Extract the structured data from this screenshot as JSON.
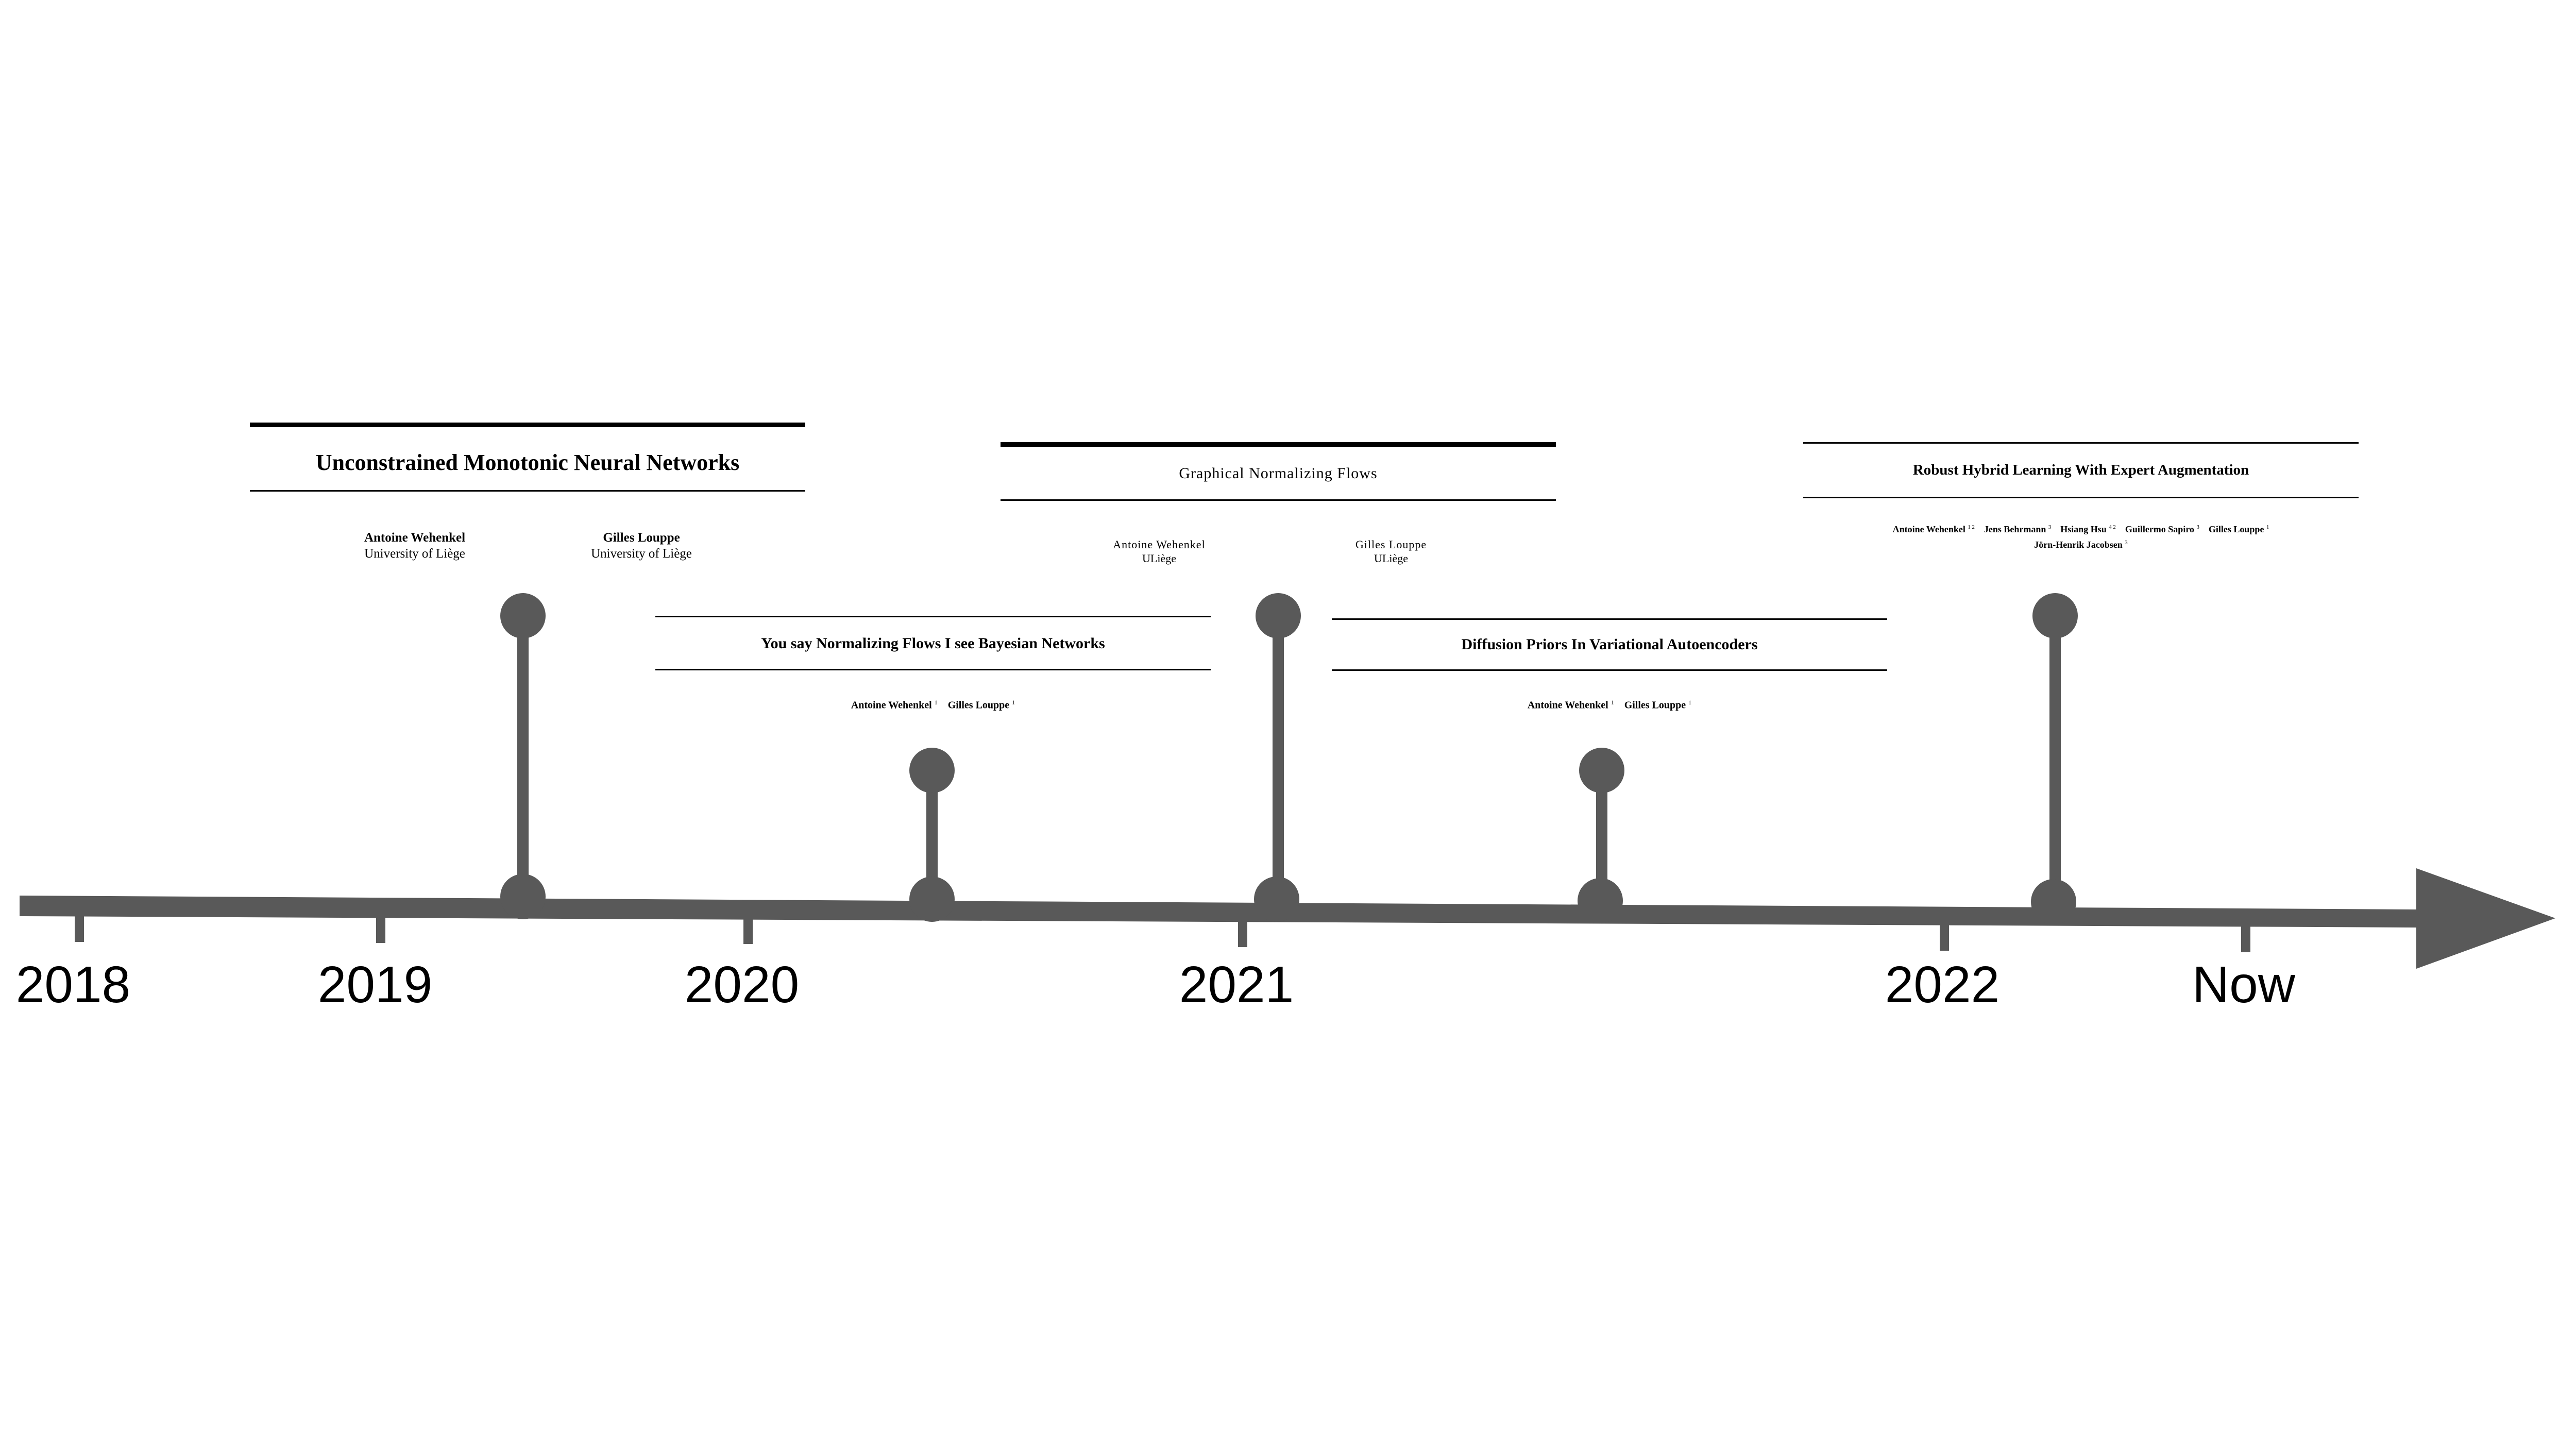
{
  "timeline": {
    "years": [
      "2018",
      "2019",
      "2020",
      "2021",
      "2022",
      "Now"
    ],
    "colors": {
      "axis": "#595959",
      "text": "#000000"
    }
  },
  "papers": [
    {
      "title": "Unconstrained Monotonic Neural Networks",
      "authors": [
        {
          "name": "Antoine Wehenkel",
          "affiliation": "University of Liège"
        },
        {
          "name": "Gilles Louppe",
          "affiliation": "University of Liège"
        }
      ]
    },
    {
      "title": "You say Normalizing Flows I see Bayesian Networks",
      "authors": [
        {
          "name": "Antoine Wehenkel",
          "sup": "1"
        },
        {
          "name": "Gilles Louppe",
          "sup": "1"
        }
      ]
    },
    {
      "title": "Graphical Normalizing Flows",
      "authors": [
        {
          "name": "Antoine Wehenkel",
          "affiliation": "ULiège"
        },
        {
          "name": "Gilles Louppe",
          "affiliation": "ULiège"
        }
      ]
    },
    {
      "title": "Diffusion Priors In Variational Autoencoders",
      "authors": [
        {
          "name": "Antoine Wehenkel",
          "sup": "1"
        },
        {
          "name": "Gilles Louppe",
          "sup": "1"
        }
      ]
    },
    {
      "title": "Robust Hybrid Learning With Expert Augmentation",
      "authors": [
        {
          "name": "Antoine Wehenkel",
          "sup": "1 2"
        },
        {
          "name": "Jens Behrmann",
          "sup": "3"
        },
        {
          "name": "Hsiang Hsu",
          "sup": "4 2"
        },
        {
          "name": "Guillermo Sapiro",
          "sup": "3"
        },
        {
          "name": "Gilles Louppe",
          "sup": "1"
        },
        {
          "name": "Jörn-Henrik Jacobsen",
          "sup": "3"
        }
      ]
    }
  ]
}
